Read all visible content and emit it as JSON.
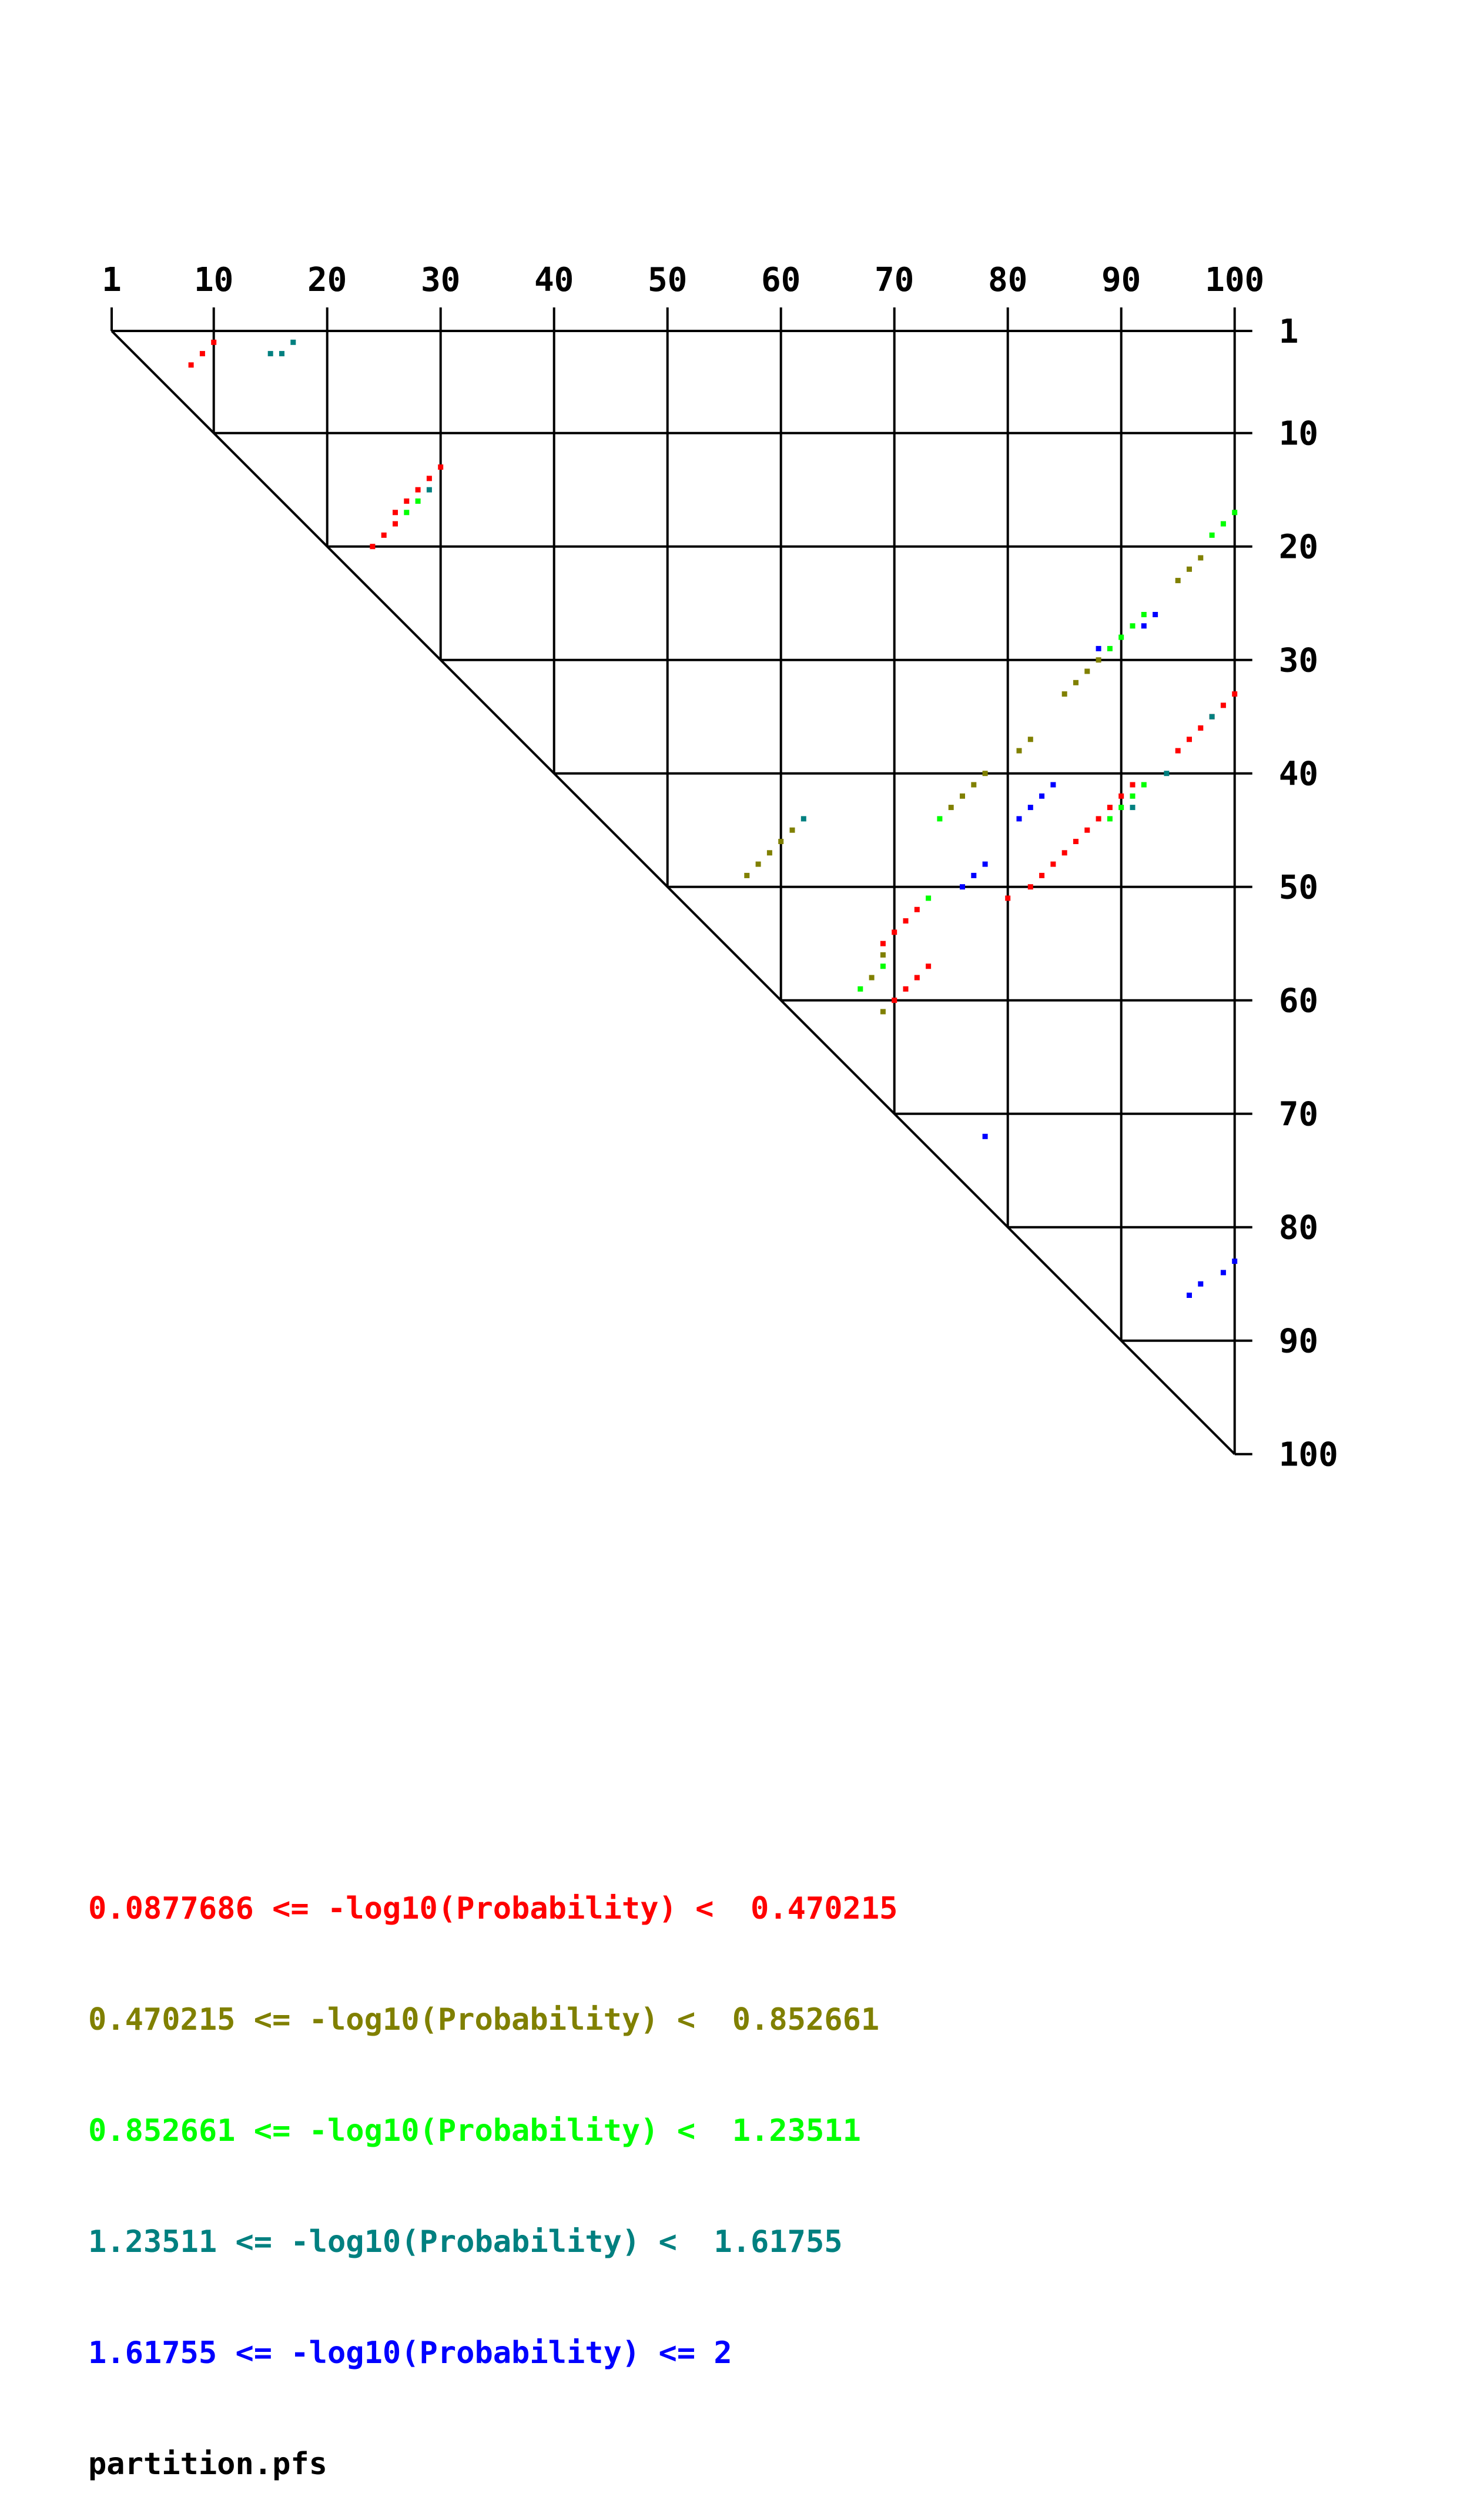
{
  "chart_data": {
    "type": "heatmap",
    "title": "",
    "x_ticks": [
      "1",
      "10",
      "20",
      "30",
      "40",
      "50",
      "60",
      "70",
      "80",
      "90",
      "100"
    ],
    "y_ticks": [
      "1",
      "10",
      "20",
      "30",
      "40",
      "50",
      "60",
      "70",
      "80",
      "90",
      "100"
    ],
    "x_tick_values": [
      1,
      10,
      20,
      30,
      40,
      50,
      60,
      70,
      80,
      90,
      100
    ],
    "y_tick_values": [
      1,
      10,
      20,
      30,
      40,
      50,
      60,
      70,
      80,
      90,
      100
    ],
    "grid": true,
    "legend": [
      {
        "text": "0.0877686 <= -log10(Probability) <  0.470215",
        "color": "#ff0000"
      },
      {
        "text": "0.470215 <= -log10(Probability) <  0.852661",
        "color": "#808000"
      },
      {
        "text": "0.852661 <= -log10(Probability) <  1.23511",
        "color": "#00ff00"
      },
      {
        "text": "1.23511 <= -log10(Probability) <  1.61755",
        "color": "#008080"
      },
      {
        "text": "1.61755 <= -log10(Probability) <= 2",
        "color": "#0000ff"
      }
    ],
    "footer": "partition.pfs",
    "series": [
      {
        "color": "#ff0000",
        "pairs": [
          [
            2,
            10
          ],
          [
            3,
            9
          ],
          [
            4,
            8
          ],
          [
            13,
            30
          ],
          [
            14,
            29
          ],
          [
            15,
            28
          ],
          [
            16,
            27
          ],
          [
            17,
            26
          ],
          [
            18,
            26
          ],
          [
            19,
            25
          ],
          [
            20,
            24
          ],
          [
            33,
            100
          ],
          [
            34,
            99
          ],
          [
            35,
            98
          ],
          [
            36,
            97
          ],
          [
            37,
            96
          ],
          [
            38,
            95
          ],
          [
            42,
            90
          ],
          [
            41,
            91
          ],
          [
            43,
            89
          ],
          [
            44,
            88
          ],
          [
            45,
            87
          ],
          [
            46,
            86
          ],
          [
            47,
            85
          ],
          [
            48,
            84
          ],
          [
            49,
            83
          ],
          [
            50,
            82
          ],
          [
            51,
            80
          ],
          [
            52,
            72
          ],
          [
            53,
            71
          ],
          [
            54,
            70
          ],
          [
            55,
            69
          ],
          [
            57,
            73
          ],
          [
            58,
            72
          ],
          [
            59,
            71
          ],
          [
            60,
            70
          ]
        ]
      },
      {
        "color": "#808000",
        "pairs": [
          [
            21,
            97
          ],
          [
            22,
            96
          ],
          [
            23,
            95
          ],
          [
            30,
            88
          ],
          [
            31,
            87
          ],
          [
            32,
            86
          ],
          [
            33,
            85
          ],
          [
            37,
            82
          ],
          [
            38,
            81
          ],
          [
            40,
            78
          ],
          [
            41,
            77
          ],
          [
            42,
            76
          ],
          [
            43,
            75
          ],
          [
            45,
            61
          ],
          [
            46,
            60
          ],
          [
            47,
            59
          ],
          [
            48,
            58
          ],
          [
            49,
            57
          ],
          [
            56,
            69
          ],
          [
            58,
            68
          ],
          [
            61,
            69
          ]
        ]
      },
      {
        "color": "#00ff00",
        "pairs": [
          [
            17,
            100
          ],
          [
            18,
            99
          ],
          [
            19,
            98
          ],
          [
            26,
            92
          ],
          [
            27,
            91
          ],
          [
            28,
            90
          ],
          [
            29,
            89
          ],
          [
            16,
            28
          ],
          [
            17,
            27
          ],
          [
            41,
            92
          ],
          [
            42,
            91
          ],
          [
            44,
            74
          ],
          [
            44,
            89
          ],
          [
            51,
            73
          ],
          [
            57,
            69
          ],
          [
            59,
            67
          ],
          [
            43,
            90
          ]
        ]
      },
      {
        "color": "#008080",
        "pairs": [
          [
            2,
            17
          ],
          [
            3,
            16
          ],
          [
            3,
            15
          ],
          [
            15,
            29
          ],
          [
            40,
            94
          ],
          [
            44,
            62
          ],
          [
            35,
            98
          ],
          [
            43,
            91
          ]
        ]
      },
      {
        "color": "#0000ff",
        "pairs": [
          [
            26,
            93
          ],
          [
            27,
            92
          ],
          [
            29,
            88
          ],
          [
            41,
            84
          ],
          [
            42,
            83
          ],
          [
            43,
            82
          ],
          [
            44,
            81
          ],
          [
            48,
            78
          ],
          [
            49,
            77
          ],
          [
            50,
            76
          ],
          [
            72,
            78
          ],
          [
            83,
            100
          ],
          [
            84,
            99
          ],
          [
            85,
            97
          ],
          [
            86,
            96
          ]
        ]
      }
    ]
  }
}
